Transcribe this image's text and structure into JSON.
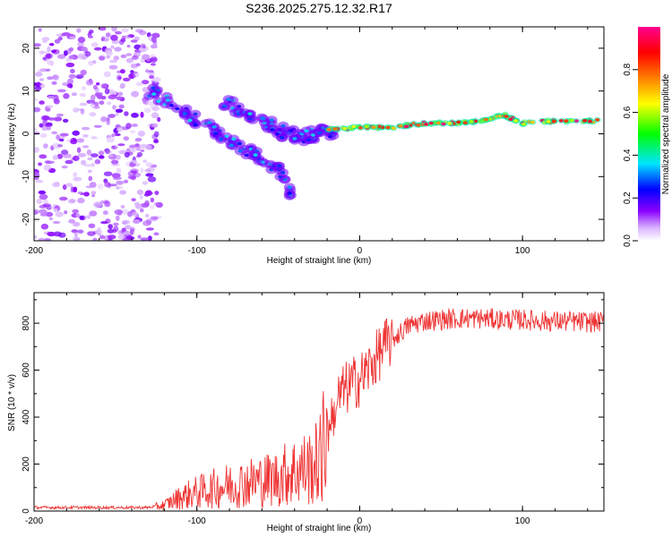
{
  "title": "S236.2025.275.12.32.R17",
  "chart_data": [
    {
      "type": "heatmap",
      "title": "S236.2025.275.12.32.R17",
      "xlabel": "Height of straight line (km)",
      "ylabel": "Frequency (Hz)",
      "xlim": [
        -200,
        150
      ],
      "ylim": [
        -25,
        25
      ],
      "xticks": [
        -200,
        -100,
        0,
        100
      ],
      "yticks": [
        -20,
        -10,
        0,
        10,
        20
      ],
      "colorbar": {
        "label": "Normalized spectral amplitude",
        "range": [
          0,
          1
        ],
        "ticks": [
          "0.0",
          "0.2",
          "0.4",
          "0.6",
          "0.8"
        ],
        "colors": [
          "#ffffff",
          "#8a00ff",
          "#0000ff",
          "#00e5ff",
          "#00ff00",
          "#ffff00",
          "#ff8000",
          "#ff0000",
          "#ff0080"
        ]
      },
      "features": [
        {
          "name": "noise region",
          "x_range": [
            -200,
            -123
          ],
          "freq_range": [
            -25,
            25
          ],
          "amplitude": 0.1
        },
        {
          "name": "descending branch",
          "points": [
            [
              -130,
              10
            ],
            [
              -110,
              6
            ],
            [
              -95,
              2
            ],
            [
              -80,
              -2
            ],
            [
              -65,
              -5
            ],
            [
              -50,
              -8
            ],
            [
              -42,
              -14
            ]
          ],
          "amplitude": 0.35
        },
        {
          "name": "upper branch",
          "points": [
            [
              -85,
              8
            ],
            [
              -70,
              5
            ],
            [
              -55,
              2
            ],
            [
              -45,
              0
            ],
            [
              -35,
              -1
            ],
            [
              -25,
              0
            ],
            [
              -15,
              1
            ]
          ],
          "amplitude": 0.35
        },
        {
          "name": "carrier line",
          "points": [
            [
              -20,
              1
            ],
            [
              0,
              1.5
            ],
            [
              20,
              1.5
            ],
            [
              40,
              2.5
            ],
            [
              60,
              2.5
            ],
            [
              75,
              3
            ],
            [
              88,
              4.5
            ],
            [
              100,
              2.5
            ],
            [
              120,
              3
            ],
            [
              150,
              3
            ]
          ],
          "amplitude": 0.9
        }
      ]
    },
    {
      "type": "line",
      "xlabel": "Height of straight line (km)",
      "ylabel": "SNR (10 * v/v)",
      "xlim": [
        -200,
        150
      ],
      "ylim": [
        0,
        930
      ],
      "xticks": [
        -200,
        -100,
        0,
        100
      ],
      "yticks": [
        0,
        200,
        400,
        600,
        800
      ],
      "series": [
        {
          "name": "SNR",
          "color": "#ee3333",
          "x": [
            -200,
            -130,
            -120,
            -110,
            -100,
            -90,
            -80,
            -70,
            -60,
            -50,
            -45,
            -40,
            -35,
            -30,
            -25,
            -20,
            -15,
            -10,
            -5,
            0,
            5,
            10,
            15,
            20,
            25,
            30,
            40,
            50,
            60,
            75,
            90,
            100,
            110,
            125,
            140,
            150
          ],
          "values": [
            15,
            15,
            25,
            60,
            80,
            95,
            110,
            120,
            130,
            140,
            160,
            170,
            180,
            185,
            210,
            330,
            460,
            510,
            540,
            560,
            600,
            650,
            700,
            730,
            760,
            790,
            810,
            815,
            820,
            820,
            815,
            815,
            810,
            808,
            805,
            805
          ]
        }
      ]
    }
  ]
}
